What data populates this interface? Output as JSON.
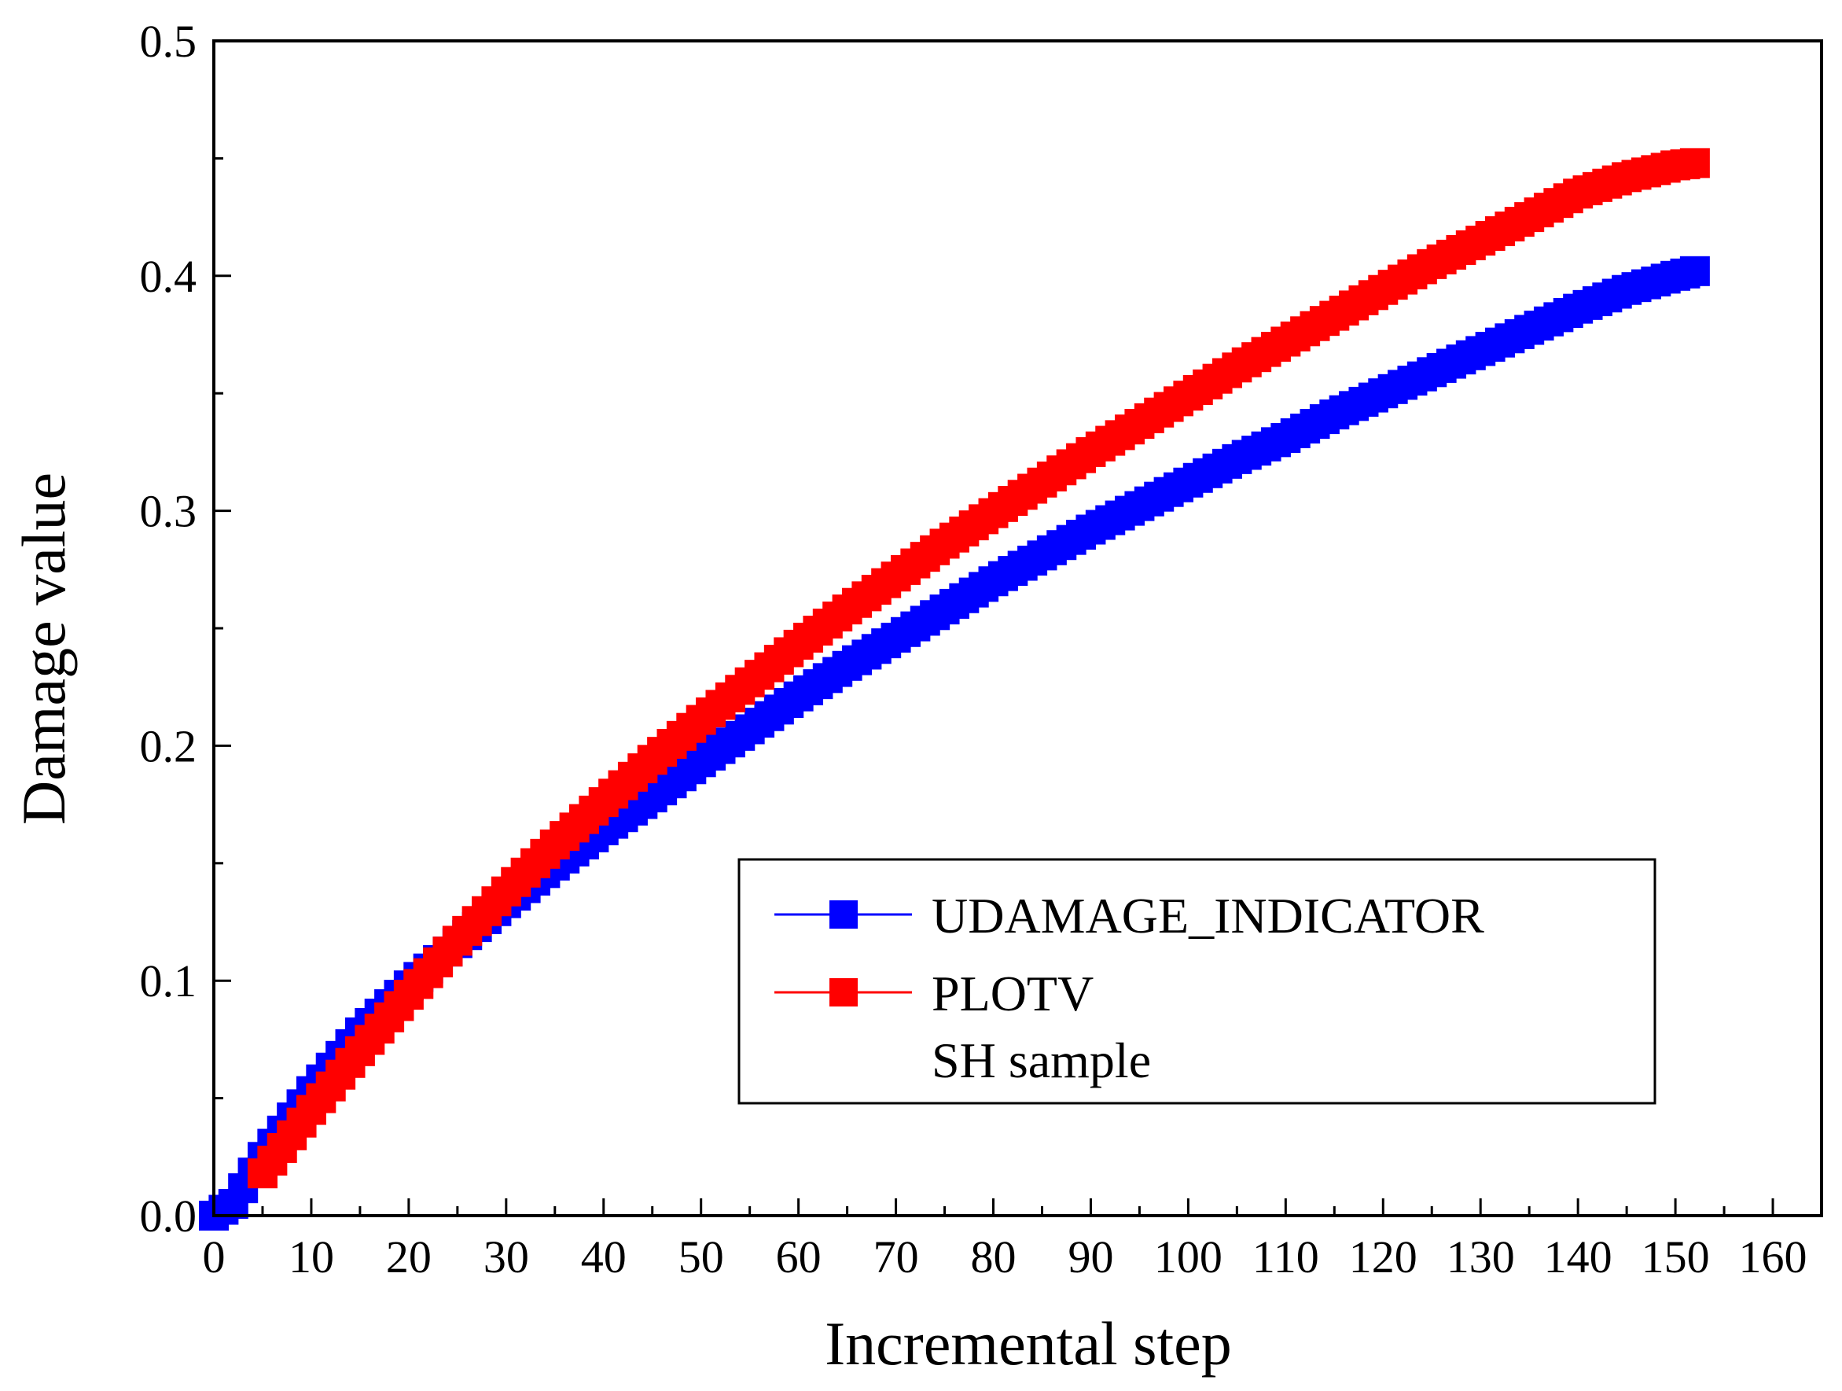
{
  "chart_data": {
    "type": "scatter",
    "title": "",
    "xlabel": "Incremental step",
    "ylabel": "Damage value",
    "xlim": [
      0,
      165
    ],
    "ylim": [
      0,
      0.5
    ],
    "xticks": [
      "0",
      "10",
      "20",
      "30",
      "40",
      "50",
      "60",
      "70",
      "80",
      "90",
      "100",
      "110",
      "120",
      "130",
      "140",
      "150",
      "160"
    ],
    "yticks": [
      "0.0",
      "0.1",
      "0.2",
      "0.3",
      "0.4",
      "0.5"
    ],
    "legend_position": "bottom-right",
    "annotation": "SH sample",
    "series": [
      {
        "name": "UDAMAGE_INDICATOR",
        "color": "#0000ff",
        "marker": "square",
        "x": [
          0,
          2,
          5,
          10,
          15,
          20,
          25,
          30,
          35,
          40,
          45,
          50,
          55,
          60,
          65,
          70,
          75,
          80,
          85,
          90,
          95,
          100,
          105,
          110,
          115,
          120,
          125,
          130,
          135,
          140,
          145,
          150,
          152
        ],
        "values": [
          0.0,
          0.005,
          0.025,
          0.053,
          0.078,
          0.098,
          0.116,
          0.133,
          0.149,
          0.164,
          0.178,
          0.193,
          0.207,
          0.221,
          0.234,
          0.246,
          0.258,
          0.27,
          0.281,
          0.292,
          0.302,
          0.312,
          0.322,
          0.331,
          0.341,
          0.35,
          0.359,
          0.368,
          0.377,
          0.386,
          0.394,
          0.4,
          0.402
        ]
      },
      {
        "name": "PLOTV",
        "color": "#ff0000",
        "marker": "square",
        "x": [
          5,
          10,
          15,
          20,
          25,
          30,
          35,
          40,
          45,
          50,
          55,
          60,
          65,
          70,
          75,
          80,
          85,
          90,
          95,
          100,
          105,
          110,
          115,
          120,
          125,
          130,
          135,
          140,
          145,
          150,
          152
        ],
        "values": [
          0.018,
          0.045,
          0.07,
          0.094,
          0.117,
          0.138,
          0.158,
          0.176,
          0.194,
          0.211,
          0.227,
          0.243,
          0.258,
          0.272,
          0.286,
          0.299,
          0.312,
          0.325,
          0.337,
          0.349,
          0.361,
          0.372,
          0.383,
          0.394,
          0.405,
          0.415,
          0.425,
          0.435,
          0.442,
          0.447,
          0.448
        ]
      }
    ]
  }
}
